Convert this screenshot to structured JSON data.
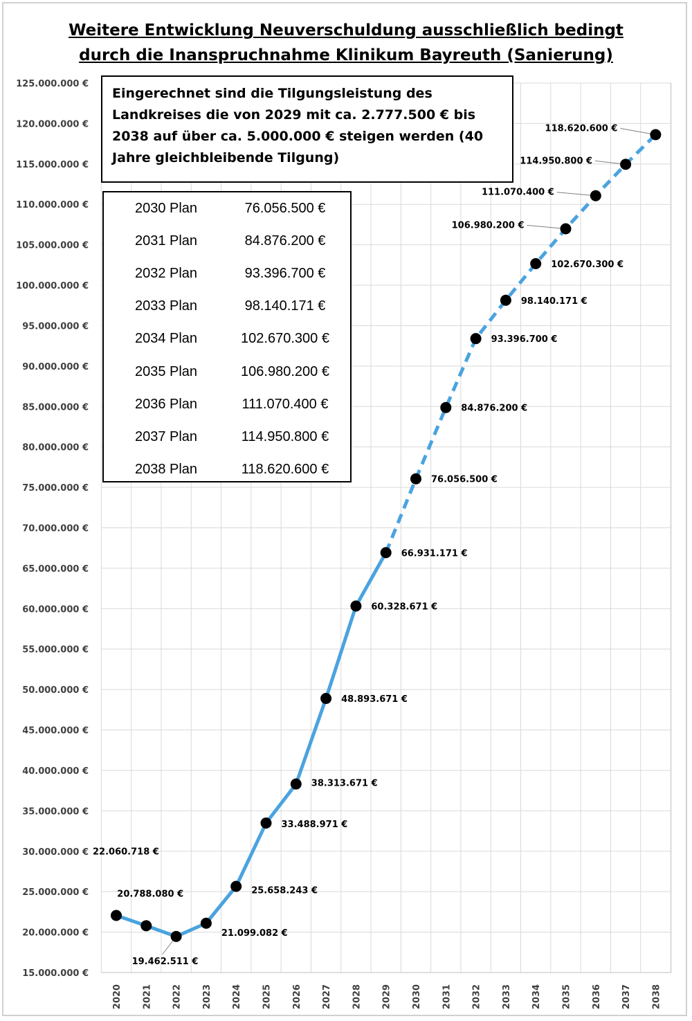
{
  "title_lines": [
    "Weitere Entwicklung Neuverschuldung ausschließlich bedingt",
    "durch die Inanspruchnahme Klinikum Bayreuth (Sanierung)"
  ],
  "note_text": "Eingerechnet sind die Tilgungsleistung des Landkreises die von 2029 mit ca. 2.777.500 € bis 2038 auf über ca. 5.000.000 € steigen werden (40 Jahre gleichbleibende Tilgung)",
  "plan_table": [
    {
      "year": "2030 Plan",
      "value": "76.056.500 €"
    },
    {
      "year": "2031 Plan",
      "value": "84.876.200 €"
    },
    {
      "year": "2032 Plan",
      "value": "93.396.700 €"
    },
    {
      "year": "2033 Plan",
      "value": "98.140.171 €"
    },
    {
      "year": "2034 Plan",
      "value": "102.670.300 €"
    },
    {
      "year": "2035 Plan",
      "value": "106.980.200 €"
    },
    {
      "year": "2036 Plan",
      "value": "111.070.400 €"
    },
    {
      "year": "2037 Plan",
      "value": "114.950.800 €"
    },
    {
      "year": "2038 Plan",
      "value": "118.620.600 €"
    }
  ],
  "chart_data": {
    "type": "line",
    "categories": [
      "2020",
      "2021",
      "2022",
      "2023",
      "2024",
      "2025",
      "2026",
      "2027",
      "2028",
      "2029",
      "2030",
      "2031",
      "2032",
      "2033",
      "2034",
      "2035",
      "2036",
      "2037",
      "2038"
    ],
    "values": [
      22060718,
      20788080,
      19462511,
      21099082,
      25658243,
      33488971,
      38313671,
      48893671,
      60328671,
      66931171,
      76056500,
      84876200,
      93396700,
      98140171,
      102670300,
      106980200,
      111070400,
      114950800,
      118620600
    ],
    "data_labels": [
      "22.060.718 €",
      "20.788.080 €",
      "19.462.511 €",
      "21.099.082 €",
      "25.658.243 €",
      "33.488.971 €",
      "38.313.671 €",
      "48.893.671 €",
      "60.328.671 €",
      "66.931.171 €",
      "76.056.500 €",
      "84.876.200 €",
      "93.396.700 €",
      "98.140.171 €",
      "102.670.300 €",
      "106.980.200 €",
      "111.070.400 €",
      "114.950.800 €",
      "118.620.600 €"
    ],
    "y_ticks": [
      "15.000.000 €",
      "20.000.000 €",
      "25.000.000 €",
      "30.000.000 €",
      "35.000.000 €",
      "40.000.000 €",
      "45.000.000 €",
      "50.000.000 €",
      "55.000.000 €",
      "60.000.000 €",
      "65.000.000 €",
      "70.000.000 €",
      "75.000.000 €",
      "80.000.000 €",
      "85.000.000 €",
      "90.000.000 €",
      "95.000.000 €",
      "100.000.000 €",
      "105.000.000 €",
      "110.000.000 €",
      "115.000.000 €",
      "120.000.000 €",
      "125.000.000 €"
    ],
    "ylim": [
      15000000,
      125000000
    ],
    "y_step": 5000000,
    "solid_until": "2029",
    "dashed_from": "2029",
    "grid": true,
    "colors": {
      "line": "#4aa3df",
      "marker": "#000000",
      "grid": "#d9d9d9",
      "leader": "#7f7f7f"
    }
  }
}
